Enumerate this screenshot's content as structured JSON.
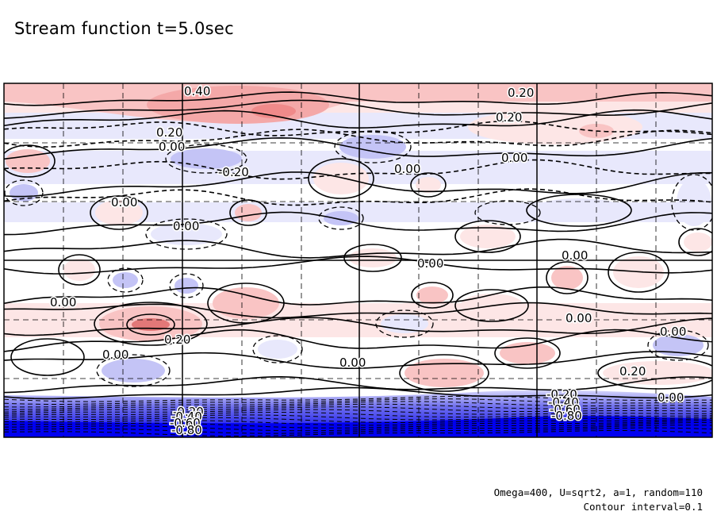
{
  "title": "Stream function t=5.0sec",
  "footnotes": {
    "parameters": "Omega=400, U=sqrt2, a=1, random=110",
    "contour_interval": "Contour interval=0.1"
  },
  "colors": {
    "positive_light": "#fde6e6",
    "positive_mid": "#f9c4c4",
    "positive_strong": "#ef8a8a",
    "negative_light": "#e8e8fc",
    "negative_mid": "#c4c4f6",
    "negative_strong": "#0000f0",
    "contour": "#000000"
  },
  "chart_data": {
    "type": "contour",
    "field": "stream function",
    "time": "5.0sec",
    "contour_interval": 0.1,
    "negative_contours": "dashed",
    "zero_and_positive_contours": "solid",
    "grid": true,
    "grid_style": "dashed",
    "approx_range": [
      -0.8,
      0.45
    ],
    "contour_labels": [
      {
        "text": "0.40"
      },
      {
        "text": "0.20"
      },
      {
        "text": "0.20"
      },
      {
        "text": "0.20"
      },
      {
        "text": "0.00"
      },
      {
        "text": "-0.20"
      },
      {
        "text": "0.00"
      },
      {
        "text": "0.00"
      },
      {
        "text": "0.00"
      },
      {
        "text": "0.00"
      },
      {
        "text": "0.00"
      },
      {
        "text": "0.00"
      },
      {
        "text": "0.00"
      },
      {
        "text": "0.20"
      },
      {
        "text": "0.00"
      },
      {
        "text": "0.00"
      },
      {
        "text": "0.00"
      },
      {
        "text": "0.00"
      },
      {
        "text": "0.20"
      },
      {
        "text": "0.00"
      },
      {
        "text": "-0.20"
      },
      {
        "text": "-0.40"
      },
      {
        "text": "-0.60"
      },
      {
        "text": "-0.80"
      },
      {
        "text": "-0.20"
      },
      {
        "text": "-0.40"
      },
      {
        "text": "-0.60"
      },
      {
        "text": "-0.80"
      }
    ]
  }
}
